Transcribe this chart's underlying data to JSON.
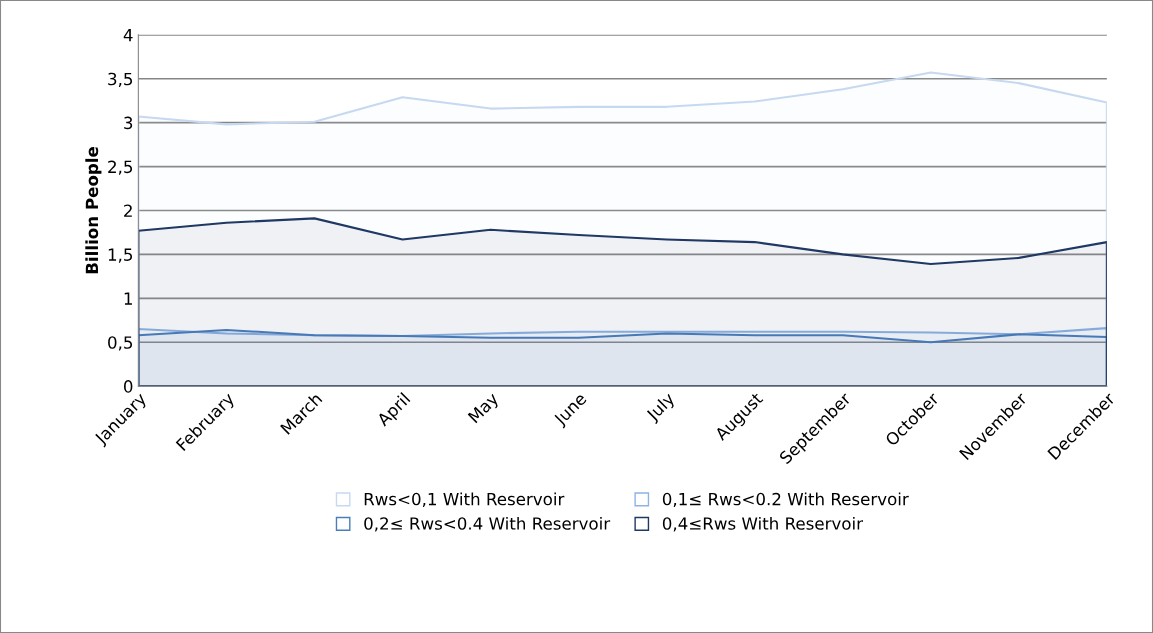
{
  "chart_data": {
    "type": "area",
    "ylabel": "Billion People",
    "categories": [
      "January",
      "February",
      "March",
      "April",
      "May",
      "June",
      "July",
      "August",
      "September",
      "October",
      "November",
      "December"
    ],
    "series": [
      {
        "name": "Rws<0,1 With Reservoir",
        "color": "#c6d9f1",
        "values": [
          3.07,
          2.98,
          3.01,
          3.29,
          3.16,
          3.18,
          3.18,
          3.24,
          3.38,
          3.57,
          3.45,
          3.23
        ]
      },
      {
        "name": "0,1≤ Rws<0.2 With Reservoir",
        "color": "#8db3e2",
        "values": [
          0.65,
          0.6,
          0.58,
          0.57,
          0.6,
          0.62,
          0.62,
          0.62,
          0.62,
          0.61,
          0.59,
          0.66
        ]
      },
      {
        "name": "0,2≤ Rws<0.4 With Reservoir",
        "color": "#4a7ebb",
        "values": [
          0.58,
          0.64,
          0.58,
          0.57,
          0.55,
          0.55,
          0.6,
          0.58,
          0.58,
          0.5,
          0.59,
          0.56
        ]
      },
      {
        "name": "0,4≤Rws With Reservoir",
        "color": "#1f3864",
        "values": [
          1.77,
          1.86,
          1.91,
          1.67,
          1.78,
          1.72,
          1.67,
          1.64,
          1.5,
          1.39,
          1.46,
          1.64
        ]
      }
    ],
    "ylim": [
      0,
      4
    ],
    "yticks": [
      0,
      {
        "value": 0.5,
        "label": "0,5"
      },
      1,
      {
        "value": 1.5,
        "label": "1,5"
      },
      2,
      {
        "value": 2.5,
        "label": "2,5"
      },
      3,
      {
        "value": 3.5,
        "label": "3,5"
      },
      4
    ],
    "grid": "y",
    "legend": "bottom"
  }
}
